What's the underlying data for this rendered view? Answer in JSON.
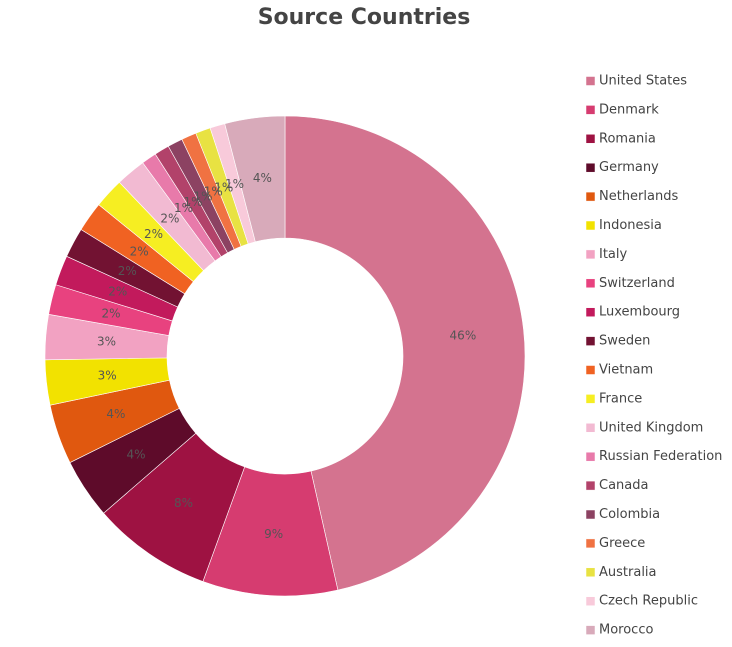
{
  "chart_data": {
    "type": "pie",
    "donut": true,
    "title": "Source Countries",
    "categories": [
      "United States",
      "Denmark",
      "Romania",
      "Germany",
      "Netherlands",
      "Indonesia",
      "Italy",
      "Switzerland",
      "Luxembourg",
      "Sweden",
      "Vietnam",
      "France",
      "United Kingdom",
      "Russian Federation",
      "Canada",
      "Colombia",
      "Greece",
      "Australia",
      "Czech Republic",
      "Morocco"
    ],
    "values": [
      46,
      9,
      8,
      4,
      4,
      3,
      3,
      2,
      2,
      2,
      2,
      2,
      2,
      1,
      1,
      1,
      1,
      1,
      1,
      4
    ],
    "value_labels": [
      "46%",
      "9%",
      "8%",
      "4%",
      "4%",
      "3%",
      "3%",
      "2%",
      "2%",
      "2%",
      "2%",
      "2%",
      "2%",
      "1%",
      "1%",
      "1%",
      "1%",
      "1%",
      "1%",
      "4%"
    ],
    "colors": [
      "#d4738f",
      "#d63c70",
      "#9e1242",
      "#5e0b2a",
      "#e0580f",
      "#f2e200",
      "#f2a2c2",
      "#e8427f",
      "#c21a5c",
      "#721232",
      "#f06222",
      "#f6ee22",
      "#f2bad2",
      "#e87aaa",
      "#b2426a",
      "#8c4262",
      "#f07242",
      "#e8e242",
      "#f8cada",
      "#d8aaba"
    ],
    "legend": "right"
  }
}
